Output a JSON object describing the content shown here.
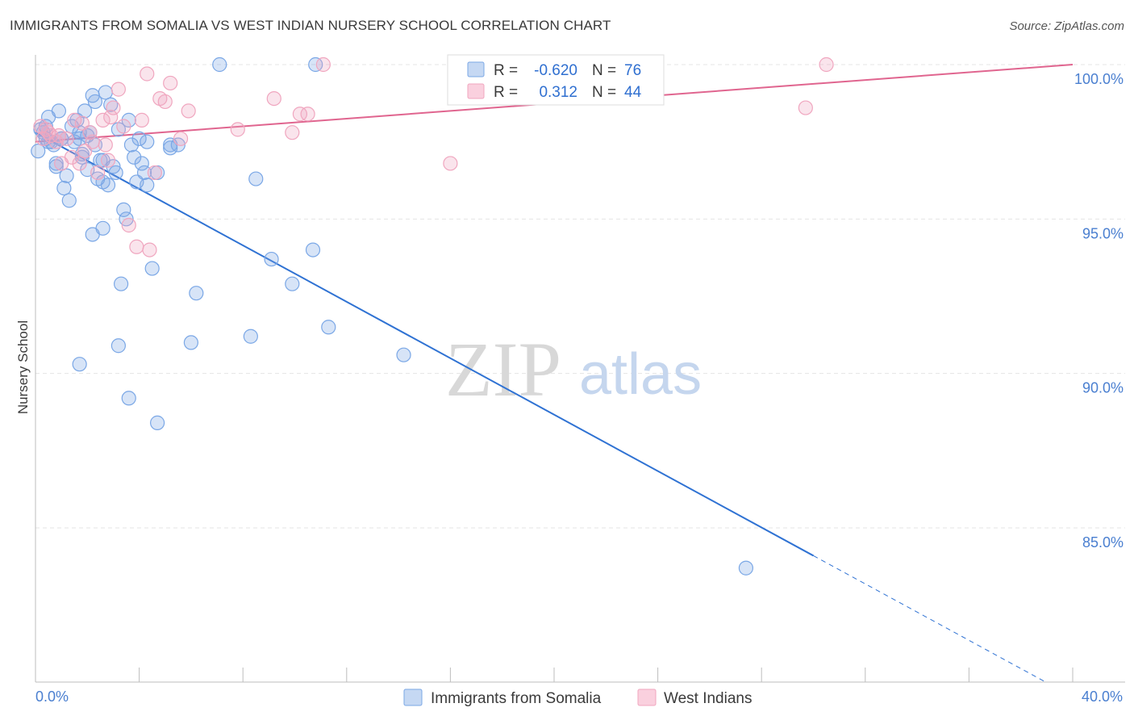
{
  "title": "IMMIGRANTS FROM SOMALIA VS WEST INDIAN NURSERY SCHOOL CORRELATION CHART",
  "source": "Source: ZipAtlas.com",
  "watermark": {
    "zip": "ZIP",
    "atlas": "atlas"
  },
  "legend_top": {
    "r_label": "R =",
    "n_label": "N =",
    "rows": [
      {
        "r": "-0.620",
        "n": "76",
        "color": "#5b8fd6"
      },
      {
        "r": "0.312",
        "n": "44",
        "color": "#e87fa3"
      }
    ]
  },
  "chart_data": {
    "type": "scatter",
    "title": "IMMIGRANTS FROM SOMALIA VS WEST INDIAN NURSERY SCHOOL CORRELATION CHART",
    "xlabel": "",
    "ylabel": "Nursery School",
    "xlim": [
      0,
      40
    ],
    "ylim": [
      80.5,
      100.8
    ],
    "x_tick_labels": {
      "left": "0.0%",
      "right": "40.0%"
    },
    "y_ticks": [
      {
        "value": 100,
        "label": "100.0%"
      },
      {
        "value": 95,
        "label": "95.0%"
      },
      {
        "value": 90,
        "label": "90.0%"
      },
      {
        "value": 85,
        "label": "85.0%"
      }
    ],
    "legend": [
      "Immigrants from Somalia",
      "West Indians"
    ],
    "series": [
      {
        "name": "Immigrants from Somalia",
        "color": "#7aa7e6",
        "line_color": "#2f72d3",
        "trend": {
          "x0": 0.0,
          "y0": 97.8,
          "x1": 30.0,
          "y1": 84.1,
          "dash_to_x": 39.0
        },
        "points": [
          [
            0.1,
            97.2
          ],
          [
            0.3,
            97.8
          ],
          [
            0.4,
            98.0
          ],
          [
            0.5,
            98.3
          ],
          [
            0.6,
            97.5
          ],
          [
            0.7,
            97.4
          ],
          [
            0.8,
            96.7
          ],
          [
            0.9,
            98.5
          ],
          [
            1.0,
            97.6
          ],
          [
            1.1,
            96.0
          ],
          [
            1.2,
            96.4
          ],
          [
            1.3,
            95.6
          ],
          [
            1.4,
            98.0
          ],
          [
            1.5,
            97.5
          ],
          [
            1.6,
            98.2
          ],
          [
            1.7,
            97.8
          ],
          [
            1.8,
            97.1
          ],
          [
            1.9,
            98.5
          ],
          [
            2.0,
            96.6
          ],
          [
            2.1,
            97.8
          ],
          [
            2.2,
            99.0
          ],
          [
            2.3,
            98.8
          ],
          [
            2.4,
            96.3
          ],
          [
            2.5,
            96.9
          ],
          [
            2.6,
            96.2
          ],
          [
            2.7,
            99.1
          ],
          [
            2.8,
            96.1
          ],
          [
            2.9,
            98.7
          ],
          [
            3.0,
            96.7
          ],
          [
            3.2,
            97.9
          ],
          [
            3.4,
            95.3
          ],
          [
            3.5,
            95.0
          ],
          [
            3.6,
            98.2
          ],
          [
            3.7,
            97.4
          ],
          [
            3.8,
            97.0
          ],
          [
            3.9,
            96.2
          ],
          [
            4.0,
            97.6
          ],
          [
            4.1,
            96.8
          ],
          [
            4.2,
            96.5
          ],
          [
            4.3,
            96.1
          ],
          [
            4.5,
            93.4
          ],
          [
            4.7,
            96.5
          ],
          [
            5.2,
            97.3
          ],
          [
            5.5,
            97.4
          ],
          [
            6.2,
            92.6
          ],
          [
            7.1,
            100.0
          ],
          [
            8.3,
            91.2
          ],
          [
            8.5,
            96.3
          ],
          [
            9.1,
            93.7
          ],
          [
            9.9,
            92.9
          ],
          [
            10.8,
            100.0
          ],
          [
            10.7,
            94.0
          ],
          [
            11.3,
            91.5
          ],
          [
            14.2,
            90.6
          ],
          [
            27.4,
            83.7
          ],
          [
            0.2,
            97.9
          ],
          [
            0.5,
            97.5
          ],
          [
            0.8,
            96.8
          ],
          [
            1.7,
            97.6
          ],
          [
            1.8,
            97.0
          ],
          [
            2.0,
            97.7
          ],
          [
            2.2,
            94.5
          ],
          [
            2.6,
            94.7
          ],
          [
            3.3,
            92.9
          ],
          [
            3.2,
            90.9
          ],
          [
            4.7,
            88.4
          ],
          [
            3.6,
            89.2
          ],
          [
            1.7,
            90.3
          ],
          [
            2.6,
            96.9
          ],
          [
            6.0,
            91.0
          ],
          [
            0.4,
            97.6
          ],
          [
            1.0,
            97.6
          ],
          [
            2.3,
            97.4
          ],
          [
            3.1,
            96.5
          ],
          [
            4.3,
            97.5
          ],
          [
            5.2,
            97.4
          ]
        ]
      },
      {
        "name": "West Indians",
        "color": "#f0a6bf",
        "line_color": "#e0658f",
        "trend": {
          "x0": 0.0,
          "y0": 97.5,
          "x1": 40.0,
          "y1": 100.0
        },
        "points": [
          [
            0.2,
            98.0
          ],
          [
            0.3,
            97.6
          ],
          [
            0.4,
            97.9
          ],
          [
            0.5,
            97.8
          ],
          [
            0.6,
            97.7
          ],
          [
            0.8,
            97.5
          ],
          [
            1.0,
            96.8
          ],
          [
            1.2,
            97.6
          ],
          [
            1.4,
            97.0
          ],
          [
            1.5,
            98.2
          ],
          [
            1.7,
            96.8
          ],
          [
            1.9,
            97.2
          ],
          [
            2.1,
            97.8
          ],
          [
            2.2,
            97.5
          ],
          [
            2.4,
            96.5
          ],
          [
            2.6,
            98.2
          ],
          [
            2.8,
            96.9
          ],
          [
            2.9,
            98.3
          ],
          [
            3.0,
            98.6
          ],
          [
            3.2,
            99.2
          ],
          [
            3.4,
            98.0
          ],
          [
            3.6,
            94.8
          ],
          [
            3.9,
            94.1
          ],
          [
            4.1,
            98.2
          ],
          [
            4.3,
            99.7
          ],
          [
            4.4,
            94.0
          ],
          [
            4.6,
            96.5
          ],
          [
            4.8,
            98.9
          ],
          [
            5.0,
            98.8
          ],
          [
            5.2,
            99.4
          ],
          [
            5.6,
            97.6
          ],
          [
            5.9,
            98.5
          ],
          [
            7.8,
            97.9
          ],
          [
            9.2,
            98.9
          ],
          [
            9.9,
            97.8
          ],
          [
            10.2,
            98.4
          ],
          [
            10.5,
            98.4
          ],
          [
            11.1,
            100.0
          ],
          [
            16.0,
            96.8
          ],
          [
            29.7,
            98.6
          ],
          [
            30.5,
            100.0
          ],
          [
            1.8,
            98.1
          ],
          [
            2.7,
            97.4
          ],
          [
            0.9,
            97.7
          ]
        ]
      }
    ]
  }
}
